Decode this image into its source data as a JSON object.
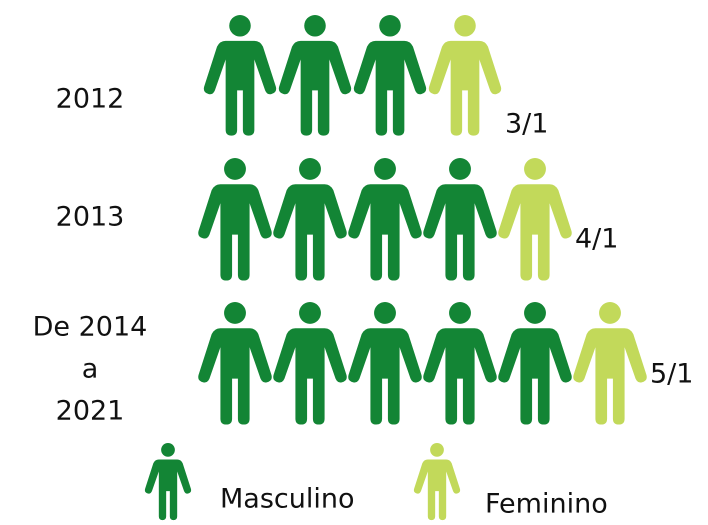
{
  "chart_data": {
    "type": "pictogram",
    "rows": [
      [
        "2012"
      ],
      [
        "2013"
      ],
      [
        "De 2014",
        "a",
        "2021"
      ]
    ],
    "series": [
      {
        "name": "Masculino",
        "color": "#138535",
        "values": [
          3,
          4,
          5
        ]
      },
      {
        "name": "Feminino",
        "color": "#c2d95a",
        "values": [
          1,
          1,
          1
        ]
      }
    ],
    "value_labels": [
      "3/1",
      "4/1",
      "5/1"
    ]
  }
}
